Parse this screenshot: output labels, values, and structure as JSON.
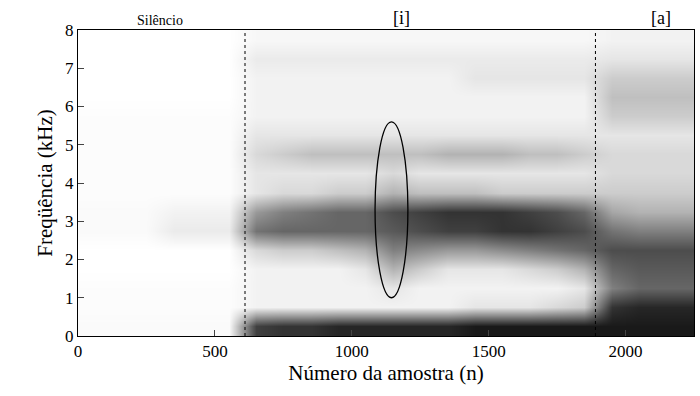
{
  "chart_data": {
    "type": "heatmap",
    "x_label": "Número da amostra (n)",
    "y_label": "Freqüência (kHz)",
    "x": [
      50,
      150,
      250,
      350,
      450,
      550,
      650,
      750,
      850,
      950,
      1050,
      1150,
      1250,
      1350,
      1450,
      1550,
      1650,
      1750,
      1850,
      1950,
      2050,
      2150,
      2250
    ],
    "y": [
      0.25,
      0.75,
      1.25,
      1.75,
      2.25,
      2.75,
      3.25,
      3.75,
      4.25,
      4.75,
      5.25,
      5.75,
      6.25,
      6.75,
      7.25,
      7.75
    ],
    "z": [
      [
        0.02,
        0.02,
        0.02,
        0.02,
        0.02,
        0.02,
        0.75,
        0.8,
        0.8,
        0.85,
        0.85,
        0.85,
        0.85,
        0.85,
        0.9,
        0.9,
        0.9,
        0.9,
        0.9,
        0.9,
        0.9,
        0.9,
        0.9
      ],
      [
        0.01,
        0.01,
        0.01,
        0.01,
        0.01,
        0.01,
        0.05,
        0.05,
        0.05,
        0.05,
        0.05,
        0.05,
        0.05,
        0.05,
        0.1,
        0.1,
        0.1,
        0.15,
        0.2,
        0.8,
        0.85,
        0.85,
        0.85
      ],
      [
        0.01,
        0.01,
        0.01,
        0.01,
        0.01,
        0.01,
        0.05,
        0.05,
        0.05,
        0.05,
        0.05,
        0.1,
        0.05,
        0.05,
        0.05,
        0.05,
        0.05,
        0.05,
        0.1,
        0.5,
        0.6,
        0.6,
        0.6
      ],
      [
        0,
        0,
        0,
        0,
        0,
        0,
        0.05,
        0.05,
        0.05,
        0.05,
        0.1,
        0.3,
        0.2,
        0.1,
        0.1,
        0.1,
        0.15,
        0.2,
        0.3,
        0.6,
        0.65,
        0.65,
        0.65
      ],
      [
        0,
        0,
        0,
        0,
        0,
        0,
        0.15,
        0.2,
        0.2,
        0.25,
        0.3,
        0.5,
        0.45,
        0.4,
        0.4,
        0.45,
        0.5,
        0.55,
        0.6,
        0.7,
        0.7,
        0.7,
        0.7
      ],
      [
        0.02,
        0.02,
        0.02,
        0.08,
        0.08,
        0.08,
        0.55,
        0.6,
        0.6,
        0.6,
        0.6,
        0.65,
        0.7,
        0.75,
        0.75,
        0.8,
        0.8,
        0.75,
        0.7,
        0.55,
        0.5,
        0.5,
        0.5
      ],
      [
        0.02,
        0.02,
        0.02,
        0.05,
        0.05,
        0.05,
        0.4,
        0.5,
        0.55,
        0.6,
        0.6,
        0.7,
        0.75,
        0.8,
        0.8,
        0.8,
        0.75,
        0.7,
        0.6,
        0.35,
        0.3,
        0.3,
        0.3
      ],
      [
        0.01,
        0.01,
        0.01,
        0.01,
        0.01,
        0.01,
        0.1,
        0.15,
        0.15,
        0.2,
        0.2,
        0.3,
        0.25,
        0.25,
        0.25,
        0.2,
        0.2,
        0.2,
        0.2,
        0.2,
        0.2,
        0.2,
        0.2
      ],
      [
        0.01,
        0.01,
        0.01,
        0.01,
        0.01,
        0.01,
        0.1,
        0.1,
        0.1,
        0.1,
        0.1,
        0.15,
        0.1,
        0.1,
        0.1,
        0.1,
        0.1,
        0.1,
        0.1,
        0.15,
        0.15,
        0.15,
        0.15
      ],
      [
        0.01,
        0.01,
        0.01,
        0.01,
        0.01,
        0.01,
        0.15,
        0.2,
        0.25,
        0.25,
        0.25,
        0.25,
        0.25,
        0.3,
        0.3,
        0.3,
        0.25,
        0.25,
        0.2,
        0.15,
        0.15,
        0.15,
        0.15
      ],
      [
        0.01,
        0.01,
        0.01,
        0.01,
        0.01,
        0.01,
        0.1,
        0.1,
        0.1,
        0.1,
        0.1,
        0.1,
        0.1,
        0.1,
        0.1,
        0.1,
        0.1,
        0.1,
        0.1,
        0.1,
        0.1,
        0.1,
        0.1
      ],
      [
        0.01,
        0.01,
        0.01,
        0.01,
        0.01,
        0.01,
        0.05,
        0.05,
        0.05,
        0.05,
        0.05,
        0.05,
        0.05,
        0.05,
        0.05,
        0.05,
        0.05,
        0.05,
        0.05,
        0.2,
        0.2,
        0.2,
        0.2
      ],
      [
        0,
        0,
        0,
        0,
        0,
        0,
        0.05,
        0.05,
        0.05,
        0.05,
        0.05,
        0.05,
        0.05,
        0.05,
        0.05,
        0.05,
        0.05,
        0.05,
        0.05,
        0.25,
        0.25,
        0.25,
        0.25
      ],
      [
        0,
        0,
        0,
        0,
        0,
        0,
        0.05,
        0.05,
        0.05,
        0.05,
        0.05,
        0.05,
        0.05,
        0.05,
        0.1,
        0.1,
        0.1,
        0.1,
        0.1,
        0.2,
        0.2,
        0.2,
        0.2
      ],
      [
        0,
        0,
        0,
        0,
        0,
        0,
        0.08,
        0.08,
        0.08,
        0.08,
        0.08,
        0.08,
        0.08,
        0.08,
        0.08,
        0.08,
        0.08,
        0.08,
        0.08,
        0.1,
        0.1,
        0.1,
        0.1
      ],
      [
        0,
        0,
        0,
        0,
        0,
        0,
        0.03,
        0.03,
        0.03,
        0.03,
        0.03,
        0.03,
        0.03,
        0.03,
        0.03,
        0.03,
        0.03,
        0.03,
        0.03,
        0.05,
        0.05,
        0.05,
        0.05
      ]
    ],
    "zlim": [
      0,
      1
    ],
    "color": "#000000",
    "xlim": [
      0,
      2250
    ],
    "xticks": [
      0,
      500,
      1000,
      1500,
      2000
    ],
    "ylim": [
      0,
      8
    ],
    "yticks": [
      0,
      1,
      2,
      3,
      4,
      5,
      6,
      7,
      8
    ],
    "annotations": [
      {
        "text": "Silêncio",
        "x": 300
      },
      {
        "text": "[i]",
        "x": 1180
      },
      {
        "text": "[a]",
        "x": 2130
      }
    ],
    "boundaries": [
      610,
      1890
    ],
    "ellipse": {
      "x0": 1085,
      "x1": 1205,
      "y0": 1,
      "y1": 5.6
    }
  }
}
